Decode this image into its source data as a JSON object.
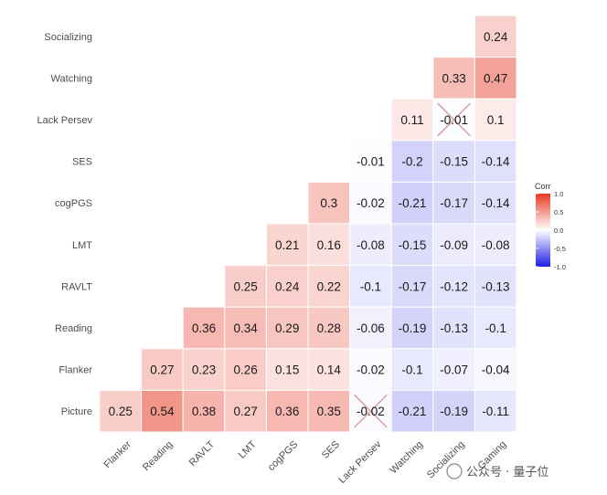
{
  "chart_data": {
    "type": "heatmap",
    "rows": [
      "Socializing",
      "Watching",
      "Lack Persev",
      "SES",
      "cogPGS",
      "LMT",
      "RAVLT",
      "Reading",
      "Flanker",
      "Picture"
    ],
    "columns": [
      "Flanker",
      "Reading",
      "RAVLT",
      "LMT",
      "cogPGS",
      "SES",
      "Lack Persev",
      "Watching",
      "Socializing",
      "Gaming"
    ],
    "cells": [
      {
        "row": "Socializing",
        "col": "Gaming",
        "label": "0.24",
        "value": 0.24
      },
      {
        "row": "Watching",
        "col": "Socializing",
        "label": "0.33",
        "value": 0.33
      },
      {
        "row": "Watching",
        "col": "Gaming",
        "label": "0.47",
        "value": 0.47
      },
      {
        "row": "Lack Persev",
        "col": "Watching",
        "label": "0.11",
        "value": 0.11
      },
      {
        "row": "Lack Persev",
        "col": "Socializing",
        "label": "-0.01",
        "value": -0.01,
        "crossed": true
      },
      {
        "row": "Lack Persev",
        "col": "Gaming",
        "label": "0.1",
        "value": 0.1
      },
      {
        "row": "SES",
        "col": "Lack Persev",
        "label": "-0.01",
        "value": -0.01
      },
      {
        "row": "SES",
        "col": "Watching",
        "label": "-0.2",
        "value": -0.2
      },
      {
        "row": "SES",
        "col": "Socializing",
        "label": "-0.15",
        "value": -0.15
      },
      {
        "row": "SES",
        "col": "Gaming",
        "label": "-0.14",
        "value": -0.14
      },
      {
        "row": "cogPGS",
        "col": "SES",
        "label": "0.3",
        "value": 0.3
      },
      {
        "row": "cogPGS",
        "col": "Lack Persev",
        "label": "-0.02",
        "value": -0.02
      },
      {
        "row": "cogPGS",
        "col": "Watching",
        "label": "-0.21",
        "value": -0.21
      },
      {
        "row": "cogPGS",
        "col": "Socializing",
        "label": "-0.17",
        "value": -0.17
      },
      {
        "row": "cogPGS",
        "col": "Gaming",
        "label": "-0.14",
        "value": -0.14
      },
      {
        "row": "LMT",
        "col": "cogPGS",
        "label": "0.21",
        "value": 0.21
      },
      {
        "row": "LMT",
        "col": "SES",
        "label": "0.16",
        "value": 0.16
      },
      {
        "row": "LMT",
        "col": "Lack Persev",
        "label": "-0.08",
        "value": -0.08
      },
      {
        "row": "LMT",
        "col": "Watching",
        "label": "-0.15",
        "value": -0.15
      },
      {
        "row": "LMT",
        "col": "Socializing",
        "label": "-0.09",
        "value": -0.09
      },
      {
        "row": "LMT",
        "col": "Gaming",
        "label": "-0.08",
        "value": -0.08
      },
      {
        "row": "RAVLT",
        "col": "LMT",
        "label": "0.25",
        "value": 0.25
      },
      {
        "row": "RAVLT",
        "col": "cogPGS",
        "label": "0.24",
        "value": 0.24
      },
      {
        "row": "RAVLT",
        "col": "SES",
        "label": "0.22",
        "value": 0.22
      },
      {
        "row": "RAVLT",
        "col": "Lack Persev",
        "label": "-0.1",
        "value": -0.1
      },
      {
        "row": "RAVLT",
        "col": "Watching",
        "label": "-0.17",
        "value": -0.17
      },
      {
        "row": "RAVLT",
        "col": "Socializing",
        "label": "-0.12",
        "value": -0.12
      },
      {
        "row": "RAVLT",
        "col": "Gaming",
        "label": "-0.13",
        "value": -0.13
      },
      {
        "row": "Reading",
        "col": "RAVLT",
        "label": "0.36",
        "value": 0.36
      },
      {
        "row": "Reading",
        "col": "LMT",
        "label": "0.34",
        "value": 0.34
      },
      {
        "row": "Reading",
        "col": "cogPGS",
        "label": "0.29",
        "value": 0.29
      },
      {
        "row": "Reading",
        "col": "SES",
        "label": "0.28",
        "value": 0.28
      },
      {
        "row": "Reading",
        "col": "Lack Persev",
        "label": "-0.06",
        "value": -0.06
      },
      {
        "row": "Reading",
        "col": "Watching",
        "label": "-0.19",
        "value": -0.19
      },
      {
        "row": "Reading",
        "col": "Socializing",
        "label": "-0.13",
        "value": -0.13
      },
      {
        "row": "Reading",
        "col": "Gaming",
        "label": "-0.1",
        "value": -0.1
      },
      {
        "row": "Flanker",
        "col": "Reading",
        "label": "0.27",
        "value": 0.27
      },
      {
        "row": "Flanker",
        "col": "RAVLT",
        "label": "0.23",
        "value": 0.23
      },
      {
        "row": "Flanker",
        "col": "LMT",
        "label": "0.26",
        "value": 0.26
      },
      {
        "row": "Flanker",
        "col": "cogPGS",
        "label": "0.15",
        "value": 0.15
      },
      {
        "row": "Flanker",
        "col": "SES",
        "label": "0.14",
        "value": 0.14
      },
      {
        "row": "Flanker",
        "col": "Lack Persev",
        "label": "-0.02",
        "value": -0.02
      },
      {
        "row": "Flanker",
        "col": "Watching",
        "label": "-0.1",
        "value": -0.1
      },
      {
        "row": "Flanker",
        "col": "Socializing",
        "label": "-0.07",
        "value": -0.07
      },
      {
        "row": "Flanker",
        "col": "Gaming",
        "label": "-0.04",
        "value": -0.04
      },
      {
        "row": "Picture",
        "col": "Flanker",
        "label": "0.25",
        "value": 0.25
      },
      {
        "row": "Picture",
        "col": "Reading",
        "label": "0.54",
        "value": 0.54
      },
      {
        "row": "Picture",
        "col": "RAVLT",
        "label": "0.38",
        "value": 0.38
      },
      {
        "row": "Picture",
        "col": "LMT",
        "label": "0.27",
        "value": 0.27
      },
      {
        "row": "Picture",
        "col": "cogPGS",
        "label": "0.36",
        "value": 0.36
      },
      {
        "row": "Picture",
        "col": "SES",
        "label": "0.35",
        "value": 0.35
      },
      {
        "row": "Picture",
        "col": "Lack Persev",
        "label": "-0.02",
        "value": -0.02,
        "crossed": true
      },
      {
        "row": "Picture",
        "col": "Watching",
        "label": "-0.21",
        "value": -0.21
      },
      {
        "row": "Picture",
        "col": "Socializing",
        "label": "-0.19",
        "value": -0.19
      },
      {
        "row": "Picture",
        "col": "Gaming",
        "label": "-0.11",
        "value": -0.11
      }
    ],
    "legend": {
      "title": "Corr",
      "ticks": [
        "1.0",
        "0.5",
        "0.0",
        "-0.5",
        "-1.0"
      ],
      "tick_values": [
        1.0,
        0.5,
        0.0,
        -0.5,
        -1.0
      ],
      "range": [
        -1.0,
        1.0
      ],
      "colors": {
        "low": "#1f1fe6",
        "mid": "#ffffff",
        "high": "#e63a25"
      },
      "placement": "right"
    },
    "grid": false,
    "cross_color": "#d9a0a0"
  },
  "watermark": "公众号 · 量子位"
}
